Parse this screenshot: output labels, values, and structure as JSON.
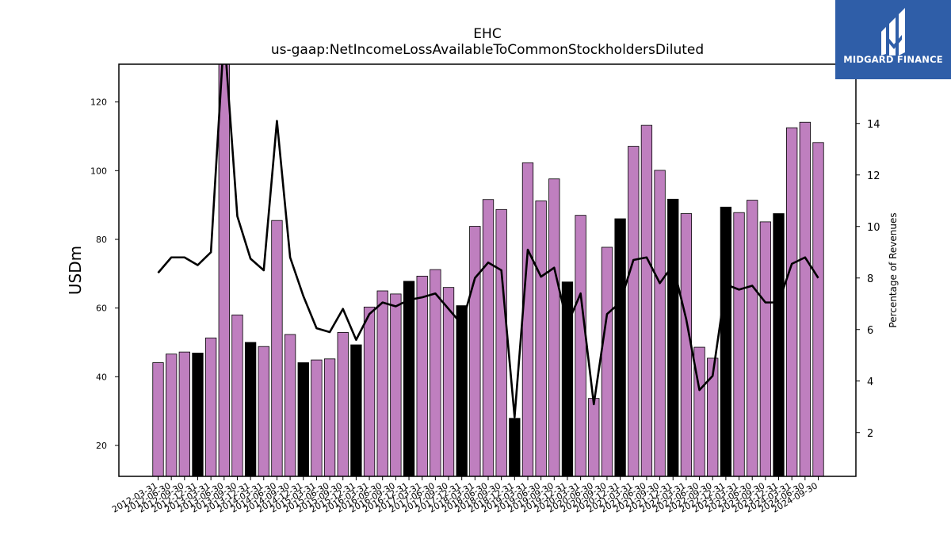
{
  "chart_data": {
    "type": "bar",
    "title": "EHC",
    "subtitle": "us-gaap:NetIncomeLossAvailableToCommonStockholdersDiluted",
    "ylabel": "USDm",
    "y2label": "Percentage of Revenues",
    "ylim": [
      11,
      131
    ],
    "y2lim": [
      0.3,
      16.3
    ],
    "yticks": [
      20,
      40,
      60,
      80,
      100,
      120
    ],
    "y2ticks": [
      2,
      4,
      6,
      8,
      10,
      12,
      14
    ],
    "grid": false,
    "categories": [
      "2012-03-31",
      "2012-06-30",
      "2012-09-30",
      "2012-12-31",
      "2013-03-31",
      "2013-06-30",
      "2013-09-30",
      "2013-12-31",
      "2014-03-31",
      "2014-06-30",
      "2014-09-30",
      "2014-12-31",
      "2015-03-31",
      "2015-06-30",
      "2015-09-30",
      "2015-12-31",
      "2016-03-31",
      "2016-06-30",
      "2016-09-30",
      "2016-12-31",
      "2017-03-31",
      "2017-06-30",
      "2017-09-30",
      "2017-12-31",
      "2018-03-31",
      "2018-06-30",
      "2018-09-30",
      "2018-12-31",
      "2019-03-31",
      "2019-06-30",
      "2019-09-30",
      "2019-12-31",
      "2020-03-31",
      "2020-06-30",
      "2020-09-30",
      "2020-12-31",
      "2021-03-31",
      "2021-06-30",
      "2021-09-30",
      "2021-12-31",
      "2022-03-31",
      "2022-06-30",
      "2022-09-30",
      "2022-12-31",
      "2023-03-31",
      "2023-06-30",
      "2023-09-30",
      "2023-12-31",
      "2024-03-31",
      "2024-06-30",
      "2024-09-30"
    ],
    "series": [
      {
        "values": [
          44.1,
          46.6,
          47.2,
          46.9,
          51.3,
          132,
          58,
          50,
          48.8,
          85.5,
          52.3,
          44.1,
          44.9,
          45.2,
          52.9,
          49.3,
          60.3,
          65,
          64.1,
          67.8,
          69.3,
          71.2,
          66,
          60.7,
          83.8,
          91.6,
          88.7,
          27.9,
          102.3,
          91.2,
          97.6,
          67.6,
          87,
          33.7,
          77.7,
          86,
          107.1,
          113.2,
          100.1,
          91.7,
          87.5,
          48.6,
          45.4,
          89.4,
          87.8,
          91.4,
          85.1,
          87.5,
          112.5,
          114.1,
          108.2
        ],
        "highlight": [
          false,
          false,
          false,
          true,
          false,
          false,
          false,
          true,
          false,
          false,
          false,
          true,
          false,
          false,
          false,
          true,
          false,
          false,
          false,
          true,
          false,
          false,
          false,
          true,
          false,
          false,
          false,
          true,
          false,
          false,
          false,
          true,
          false,
          false,
          false,
          true,
          false,
          false,
          false,
          true,
          false,
          false,
          false,
          true,
          false,
          false,
          false,
          true,
          false,
          false,
          false
        ]
      },
      {
        "axis": "y2",
        "type": "line",
        "values": [
          8.2,
          8.8,
          8.8,
          8.5,
          9,
          17.5,
          10.4,
          8.75,
          8.3,
          14.1,
          8.8,
          7.3,
          6.05,
          5.9,
          6.8,
          5.6,
          6.6,
          7.05,
          6.9,
          7.15,
          7.25,
          7.4,
          6.8,
          6.2,
          8,
          8.6,
          8.3,
          2.6,
          9.1,
          8.05,
          8.4,
          6.2,
          7.4,
          3.1,
          6.6,
          7.05,
          8.7,
          8.8,
          7.8,
          8.5,
          6.4,
          3.65,
          4.2,
          7.75,
          7.55,
          7.7,
          7.05,
          7.05,
          8.55,
          8.8,
          8
        ]
      }
    ],
    "colors": {
      "bar": "#bf7fbf",
      "highlight": "#000000",
      "line": "#000000"
    }
  },
  "logo": {
    "text": "MIDGARD FINANCE",
    "bg": "#2f5ea8"
  }
}
